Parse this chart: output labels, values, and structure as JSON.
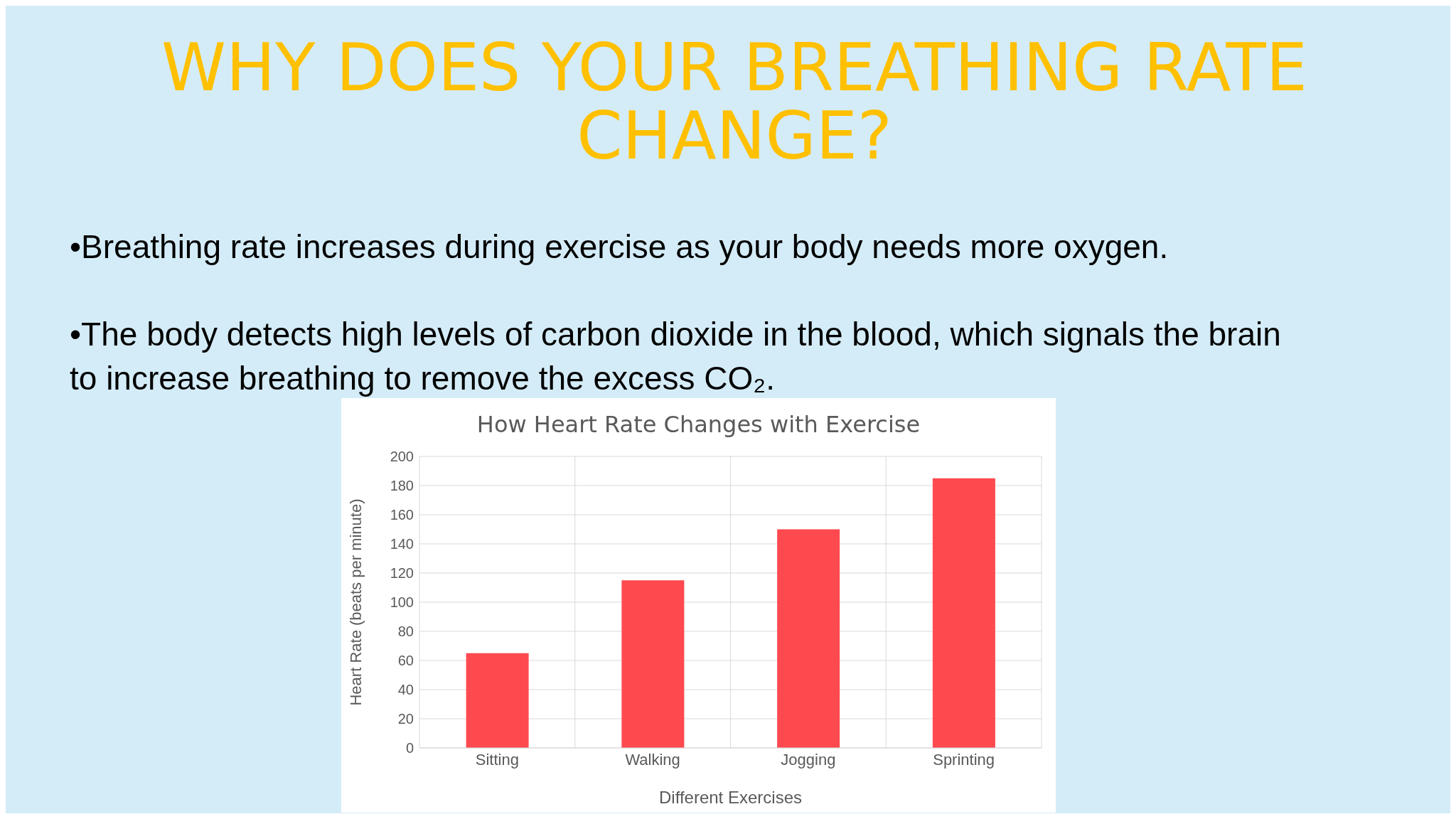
{
  "chart_data": {
    "type": "bar",
    "title": "WHY DOES YOUR BREATHING RATE CHANGE?",
    "subtitle": "How Heart Rate Changes with Exercise",
    "annotations": [
      "•Breathing rate increases during exercise as your body needs more oxygen.",
      "•The body detects high levels of carbon dioxide in the blood, which signals the brain to increase breathing to remove the excess CO₂."
    ],
    "xlabel": "Different Exercises",
    "ylabel": "Heart Rate (beats per minute)",
    "categories": [
      "Sitting",
      "Walking",
      "Jogging",
      "Sprinting"
    ],
    "values": [
      65,
      115,
      150,
      185
    ],
    "color": "#fe4a4f",
    "ylim": [
      0,
      200
    ],
    "yticks": [
      0,
      20,
      40,
      60,
      80,
      100,
      120,
      140,
      160,
      180,
      200
    ],
    "grid": true
  }
}
